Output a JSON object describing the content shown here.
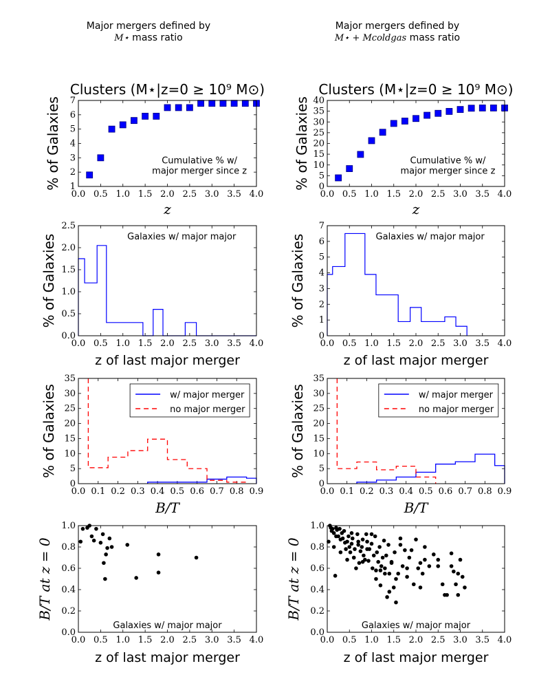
{
  "header": {
    "left_line1": "Major mergers defined by",
    "left_line2_sym": "M⋆",
    "left_line2_text": " mass ratio",
    "right_line1": "Major mergers defined by",
    "right_line2_sym": "M⋆ + Mcoldgas",
    "right_line2_text": " mass ratio"
  },
  "colors": {
    "series_blue": "#0000ff",
    "square_fill": "#0000ff",
    "square_edge": "#000080",
    "dashed_red": "#ff0000",
    "dot": "#000000"
  },
  "chart_data": [
    {
      "id": "cum_left",
      "type": "scatter",
      "title": "Clusters (M⋆|z=0 ≥ 10⁹ M⊙)",
      "xlabel": "z",
      "ylabel": "% of Galaxies",
      "xlim": [
        0,
        4
      ],
      "ylim": [
        1,
        7
      ],
      "xticks": [
        0.0,
        0.5,
        1.0,
        1.5,
        2.0,
        2.5,
        3.0,
        3.5,
        4.0
      ],
      "xtick_labels": [
        "0.0",
        "0.5",
        "1.0",
        "1.5",
        "2.0",
        "2.5",
        "3.0",
        "3.5",
        "4.0"
      ],
      "yticks": [
        1,
        2,
        3,
        4,
        5,
        6,
        7
      ],
      "ytick_labels": [
        "1",
        "2",
        "3",
        "4",
        "5",
        "6",
        "7"
      ],
      "annotation": [
        "Cumulative % w/",
        "major merger since z"
      ],
      "x": [
        0.25,
        0.5,
        0.75,
        1.0,
        1.25,
        1.5,
        1.75,
        2.0,
        2.25,
        2.5,
        2.75,
        3.0,
        3.25,
        3.5,
        3.75,
        4.0
      ],
      "y": [
        1.8,
        3.0,
        5.0,
        5.3,
        5.6,
        5.9,
        5.9,
        6.5,
        6.5,
        6.5,
        6.8,
        6.8,
        6.8,
        6.8,
        6.8,
        6.8
      ]
    },
    {
      "id": "cum_right",
      "type": "scatter",
      "title": "Clusters (M⋆|z=0 ≥ 10⁹ M⊙)",
      "xlabel": "z",
      "ylabel": "% of Galaxies",
      "xlim": [
        0,
        4
      ],
      "ylim": [
        0,
        40
      ],
      "xticks": [
        0.0,
        0.5,
        1.0,
        1.5,
        2.0,
        2.5,
        3.0,
        3.5,
        4.0
      ],
      "xtick_labels": [
        "0.0",
        "0.5",
        "1.0",
        "1.5",
        "2.0",
        "2.5",
        "3.0",
        "3.5",
        "4.0"
      ],
      "yticks": [
        0,
        5,
        10,
        15,
        20,
        25,
        30,
        35,
        40
      ],
      "ytick_labels": [
        "0",
        "5",
        "10",
        "15",
        "20",
        "25",
        "30",
        "35",
        "40"
      ],
      "annotation": [
        "Cumulative % w/",
        "major merger since z"
      ],
      "x": [
        0.25,
        0.5,
        0.75,
        1.0,
        1.25,
        1.5,
        1.75,
        2.0,
        2.25,
        2.5,
        2.75,
        3.0,
        3.25,
        3.5,
        3.75,
        4.0
      ],
      "y": [
        4.0,
        8.3,
        14.9,
        21.3,
        25.2,
        29.3,
        30.4,
        31.6,
        33.1,
        34.0,
        34.9,
        35.8,
        36.4,
        36.5,
        36.5,
        36.5
      ]
    },
    {
      "id": "hist_left",
      "type": "step",
      "xlabel": "z of last major merger",
      "ylabel": "% of Galaxies",
      "xlim": [
        0,
        4
      ],
      "ylim": [
        0,
        2.5
      ],
      "xticks": [
        0.0,
        0.5,
        1.0,
        1.5,
        2.0,
        2.5,
        3.0,
        3.5,
        4.0
      ],
      "xtick_labels": [
        "0.0",
        "0.5",
        "1.0",
        "1.5",
        "2.0",
        "2.5",
        "3.0",
        "3.5",
        "4.0"
      ],
      "yticks": [
        0,
        0.5,
        1.0,
        1.5,
        2.0,
        2.5
      ],
      "ytick_labels": [
        "0.0",
        "0.5",
        "1.0",
        "1.5",
        "2.0",
        "2.5"
      ],
      "annotation": [
        "Galaxies w/ major major"
      ],
      "bin_edges": [
        0.0,
        0.14,
        0.42,
        0.63,
        1.45,
        1.68,
        1.9,
        2.4,
        2.65,
        4.0
      ],
      "values": [
        1.75,
        1.2,
        2.05,
        0.3,
        0.0,
        0.6,
        0.0,
        0.3,
        0.0
      ]
    },
    {
      "id": "hist_right",
      "type": "step",
      "xlabel": "z of last major merger",
      "ylabel": "% of Galaxies",
      "xlim": [
        0,
        4
      ],
      "ylim": [
        0,
        7
      ],
      "xticks": [
        0.0,
        0.5,
        1.0,
        1.5,
        2.0,
        2.5,
        3.0,
        3.5,
        4.0
      ],
      "xtick_labels": [
        "0.0",
        "0.5",
        "1.0",
        "1.5",
        "2.0",
        "2.5",
        "3.0",
        "3.5",
        "4.0"
      ],
      "yticks": [
        0,
        1,
        2,
        3,
        4,
        5,
        6,
        7
      ],
      "ytick_labels": [
        "0",
        "1",
        "2",
        "3",
        "4",
        "5",
        "6",
        "7"
      ],
      "annotation": [
        "Galaxies w/ major major"
      ],
      "bin_edges": [
        0.0,
        0.12,
        0.4,
        0.85,
        1.1,
        1.6,
        1.87,
        2.12,
        2.65,
        2.9,
        3.15
      ],
      "values": [
        3.9,
        4.4,
        6.5,
        3.9,
        2.6,
        0.9,
        1.8,
        0.9,
        1.2,
        0.6
      ]
    },
    {
      "id": "bt_left",
      "type": "step",
      "xlabel": "B/T",
      "ylabel": "% of Galaxies",
      "xlim": [
        0,
        0.9
      ],
      "ylim": [
        0,
        35
      ],
      "xticks": [
        0.0,
        0.1,
        0.2,
        0.3,
        0.4,
        0.5,
        0.6,
        0.7,
        0.8,
        0.9
      ],
      "xtick_labels": [
        "0.0",
        "0.1",
        "0.2",
        "0.3",
        "0.4",
        "0.5",
        "0.6",
        "0.7",
        "0.8",
        "0.9"
      ],
      "yticks": [
        0,
        5,
        10,
        15,
        20,
        25,
        30,
        35
      ],
      "ytick_labels": [
        "0",
        "5",
        "10",
        "15",
        "20",
        "25",
        "30",
        "35"
      ],
      "legend_position": "top-center",
      "series": [
        {
          "name": "w/ major merger",
          "style": "solid",
          "color": "#0000ff",
          "bin_edges": [
            0.35,
            0.65,
            0.75,
            0.85,
            0.9
          ],
          "values": [
            0.5,
            1.5,
            2.2,
            1.8
          ]
        },
        {
          "name": "no major merger",
          "style": "dashed",
          "color": "#ff0000",
          "bin_edges": [
            0.05,
            0.15,
            0.25,
            0.35,
            0.45,
            0.55,
            0.65,
            0.75,
            0.85
          ],
          "values": [
            5.3,
            8.8,
            11.0,
            14.8,
            8.0,
            5.0,
            1.1,
            0.5
          ],
          "spike_at": 0.05,
          "spike_top": 35
        }
      ]
    },
    {
      "id": "bt_right",
      "type": "step",
      "xlabel": "B/T",
      "ylabel": "% of Galaxies",
      "xlim": [
        0,
        0.9
      ],
      "ylim": [
        0,
        35
      ],
      "xticks": [
        0.0,
        0.1,
        0.2,
        0.3,
        0.4,
        0.5,
        0.6,
        0.7,
        0.8,
        0.9
      ],
      "xtick_labels": [
        "0.0",
        "0.1",
        "0.2",
        "0.3",
        "0.4",
        "0.5",
        "0.6",
        "0.7",
        "0.8",
        "0.9"
      ],
      "yticks": [
        0,
        5,
        10,
        15,
        20,
        25,
        30,
        35
      ],
      "ytick_labels": [
        "0",
        "5",
        "10",
        "15",
        "20",
        "25",
        "30",
        "35"
      ],
      "legend_position": "top-center",
      "series": [
        {
          "name": "w/ major merger",
          "style": "solid",
          "color": "#0000ff",
          "bin_edges": [
            0.15,
            0.25,
            0.35,
            0.45,
            0.55,
            0.65,
            0.75,
            0.85,
            0.9
          ],
          "values": [
            0.5,
            1.2,
            2.2,
            3.8,
            6.5,
            7.3,
            9.8,
            6.0
          ]
        },
        {
          "name": "no major merger",
          "style": "dashed",
          "color": "#ff0000",
          "bin_edges": [
            0.05,
            0.15,
            0.25,
            0.35,
            0.45,
            0.55
          ],
          "values": [
            5.0,
            7.2,
            4.6,
            5.8,
            2.2
          ],
          "spike_at": 0.05,
          "spike_top": 35
        }
      ]
    },
    {
      "id": "sc_left",
      "type": "scatter",
      "xlabel": "z of last major merger",
      "ylabel": "B/T at z = 0",
      "xlim": [
        0,
        4
      ],
      "ylim": [
        0,
        1
      ],
      "xticks": [
        0.0,
        0.5,
        1.0,
        1.5,
        2.0,
        2.5,
        3.0,
        3.5,
        4.0
      ],
      "xtick_labels": [
        "0.0",
        "0.5",
        "1.0",
        "1.5",
        "2.0",
        "2.5",
        "3.0",
        "3.5",
        "4.0"
      ],
      "yticks": [
        0,
        0.2,
        0.4,
        0.6,
        0.8,
        1.0
      ],
      "ytick_labels": [
        "0.0",
        "0.2",
        "0.4",
        "0.6",
        "0.8",
        "1.0"
      ],
      "annotation": [
        "Galaxies w/ major major"
      ],
      "x": [
        0.05,
        0.1,
        0.2,
        0.25,
        0.3,
        0.35,
        0.4,
        0.5,
        0.55,
        0.57,
        0.6,
        0.62,
        0.65,
        0.7,
        0.75,
        1.1,
        1.3,
        1.8,
        1.8,
        2.65
      ],
      "y": [
        0.85,
        0.97,
        0.98,
        1.0,
        0.9,
        0.86,
        0.97,
        0.84,
        0.92,
        0.65,
        0.5,
        0.73,
        0.79,
        0.88,
        0.8,
        0.82,
        0.51,
        0.56,
        0.73,
        0.7
      ]
    },
    {
      "id": "sc_right",
      "type": "scatter",
      "xlabel": "z of last major merger",
      "ylabel": "B/T at z = 0",
      "xlim": [
        0,
        4
      ],
      "ylim": [
        0,
        1
      ],
      "xticks": [
        0.0,
        0.5,
        1.0,
        1.5,
        2.0,
        2.5,
        3.0,
        3.5,
        4.0
      ],
      "xtick_labels": [
        "0.0",
        "0.5",
        "1.0",
        "1.5",
        "2.0",
        "2.5",
        "3.0",
        "3.5",
        "4.0"
      ],
      "yticks": [
        0,
        0.2,
        0.4,
        0.6,
        0.8,
        1.0
      ],
      "ytick_labels": [
        "0.0",
        "0.2",
        "0.4",
        "0.6",
        "0.8",
        "1.0"
      ],
      "annotation": [
        "Galaxies w/ major major"
      ],
      "x": [
        0.03,
        0.06,
        0.08,
        0.1,
        0.12,
        0.15,
        0.18,
        0.2,
        0.22,
        0.25,
        0.28,
        0.3,
        0.33,
        0.35,
        0.38,
        0.4,
        0.42,
        0.45,
        0.48,
        0.5,
        0.52,
        0.55,
        0.57,
        0.6,
        0.62,
        0.65,
        0.68,
        0.7,
        0.72,
        0.75,
        0.78,
        0.8,
        0.82,
        0.85,
        0.88,
        0.9,
        0.93,
        0.95,
        1.0,
        1.02,
        1.05,
        1.08,
        1.1,
        1.12,
        1.15,
        1.18,
        1.2,
        1.22,
        1.25,
        1.28,
        1.3,
        1.33,
        1.35,
        1.38,
        1.4,
        1.45,
        1.5,
        1.52,
        1.55,
        1.6,
        1.65,
        1.7,
        1.75,
        1.8,
        1.85,
        1.9,
        2.0,
        2.05,
        2.1,
        2.1,
        2.15,
        2.2,
        2.3,
        2.4,
        2.5,
        2.6,
        2.7,
        2.8,
        2.85,
        2.9,
        2.95,
        3.0,
        3.05,
        0.15,
        0.2,
        0.3,
        0.45,
        0.55,
        0.6,
        0.7,
        0.8,
        0.9,
        1.0,
        1.1,
        1.2,
        1.3,
        1.4,
        1.45,
        1.55,
        1.65,
        1.8,
        1.95,
        2.2,
        2.5,
        2.65,
        2.8,
        2.95,
        3.1
      ],
      "y": [
        0.85,
        1.0,
        0.98,
        0.95,
        0.97,
        0.93,
        0.53,
        0.98,
        0.96,
        0.9,
        0.97,
        0.87,
        0.93,
        0.88,
        0.95,
        0.84,
        0.78,
        0.68,
        0.9,
        0.8,
        0.75,
        0.83,
        0.88,
        0.7,
        0.78,
        0.6,
        0.92,
        0.85,
        0.65,
        0.76,
        0.8,
        0.87,
        0.72,
        0.68,
        0.92,
        0.85,
        0.67,
        0.78,
        0.83,
        0.6,
        0.72,
        0.9,
        0.5,
        0.75,
        0.66,
        0.8,
        0.58,
        0.62,
        0.7,
        0.86,
        0.6,
        0.72,
        0.33,
        0.82,
        0.55,
        0.65,
        0.42,
        0.75,
        0.28,
        0.55,
        0.88,
        0.62,
        0.77,
        0.52,
        0.7,
        0.77,
        0.87,
        0.6,
        0.42,
        0.65,
        0.55,
        0.68,
        0.62,
        0.73,
        0.68,
        0.45,
        0.35,
        0.62,
        0.57,
        0.45,
        0.35,
        0.68,
        0.52,
        0.8,
        0.9,
        0.75,
        0.85,
        0.93,
        0.7,
        0.82,
        0.66,
        0.78,
        0.92,
        0.58,
        0.44,
        0.55,
        0.38,
        0.66,
        0.5,
        0.82,
        0.6,
        0.45,
        0.8,
        0.62,
        0.35,
        0.74,
        0.55,
        0.42
      ]
    }
  ]
}
